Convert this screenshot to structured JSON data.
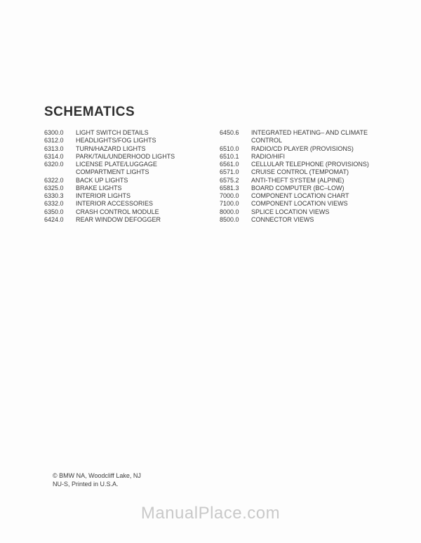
{
  "title": "SCHEMATICS",
  "title_fontsize": 19,
  "body_fontsize": 9,
  "col1_width": 210,
  "col2_width": 225,
  "left_column": [
    {
      "code": "6300.0",
      "label": "LIGHT SWITCH DETAILS"
    },
    {
      "code": "6312.0",
      "label": "HEADLIGHTS/FOG LIGHTS"
    },
    {
      "code": "6313.0",
      "label": "TURN/HAZARD LIGHTS"
    },
    {
      "code": "6314.0",
      "label": "PARK/TAIL/UNDERHOOD LIGHTS"
    },
    {
      "code": "6320.0",
      "label": "LICENSE PLATE/LUGGAGE",
      "cont": "COMPARTMENT LIGHTS"
    },
    {
      "code": "6322.0",
      "label": "BACK UP LIGHTS"
    },
    {
      "code": "6325.0",
      "label": "BRAKE LIGHTS"
    },
    {
      "code": "6330.3",
      "label": "INTERIOR LIGHTS"
    },
    {
      "code": "6332.0",
      "label": "INTERIOR ACCESSORIES"
    },
    {
      "code": "6350.0",
      "label": "CRASH CONTROL MODULE"
    },
    {
      "code": "6424.0",
      "label": "REAR WINDOW DEFOGGER"
    }
  ],
  "right_column": [
    {
      "code": "6450.6",
      "label": "INTEGRATED HEATING– AND CLIMATE",
      "cont": "CONTROL"
    },
    {
      "code": "6510.0",
      "label": "RADIO/CD PLAYER (PROVISIONS)"
    },
    {
      "code": "6510.1",
      "label": "RADIO/HIFI"
    },
    {
      "code": "6561.0",
      "label": "CELLULAR TELEPHONE (PROVISIONS)"
    },
    {
      "code": "6571.0",
      "label": "CRUISE CONTROL (TEMPOMAT)"
    },
    {
      "code": "6575.2",
      "label": "ANTI-THEFT SYSTEM (ALPINE)"
    },
    {
      "code": "6581.3",
      "label": "BOARD COMPUTER (BC–LOW)"
    },
    {
      "code": "7000.0",
      "label": "COMPONENT LOCATION CHART"
    },
    {
      "code": "7100.0",
      "label": "COMPONENT LOCATION VIEWS"
    },
    {
      "code": "8000.0",
      "label": "SPLICE LOCATION VIEWS"
    },
    {
      "code": "8500.0",
      "label": "CONNECTOR VIEWS"
    }
  ],
  "footer_line1": "© BMW NA, Woodcliff Lake, NJ",
  "footer_line2": "NU-S, Printed in U.S.A.",
  "watermark": "ManualPlace.com",
  "colors": {
    "background": "#fdfdfd",
    "text": "#3a3a3a",
    "title": "#2f2f2f",
    "watermark": "#c9c9c9"
  }
}
